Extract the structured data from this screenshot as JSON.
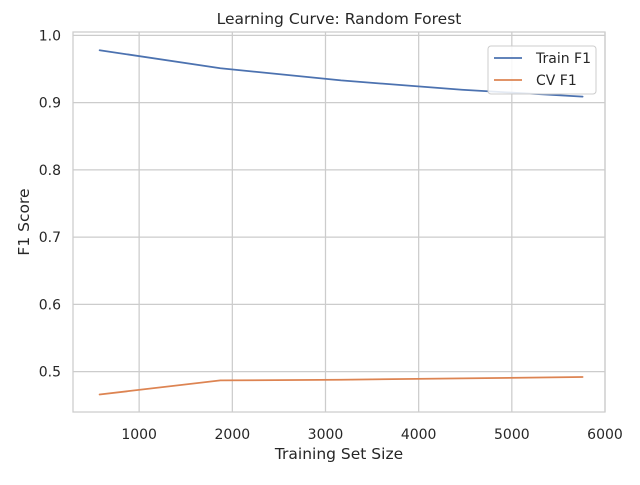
{
  "chart_data": {
    "type": "line",
    "title": "Learning Curve: Random Forest",
    "xlabel": "Training Set Size",
    "ylabel": "F1 Score",
    "xlim": [
      290,
      6000
    ],
    "ylim": [
      0.44,
      1.005
    ],
    "xticks": [
      1000,
      2000,
      3000,
      4000,
      5000,
      6000
    ],
    "xtick_labels": [
      "1000",
      "2000",
      "3000",
      "4000",
      "5000",
      "6000"
    ],
    "yticks": [
      0.5,
      0.6,
      0.7,
      0.8,
      0.9,
      1.0
    ],
    "ytick_labels": [
      "0.5",
      "0.6",
      "0.7",
      "0.8",
      "0.9",
      "1.0"
    ],
    "grid": true,
    "legend_position": "top-right",
    "x": [
      576,
      1872,
      3168,
      4464,
      5760
    ],
    "series": [
      {
        "name": "Train F1",
        "color": "#4c72b0",
        "values": [
          0.978,
          0.951,
          0.933,
          0.919,
          0.909
        ]
      },
      {
        "name": "CV F1",
        "color": "#dd8452",
        "values": [
          0.466,
          0.487,
          0.488,
          0.49,
          0.492
        ]
      }
    ]
  }
}
